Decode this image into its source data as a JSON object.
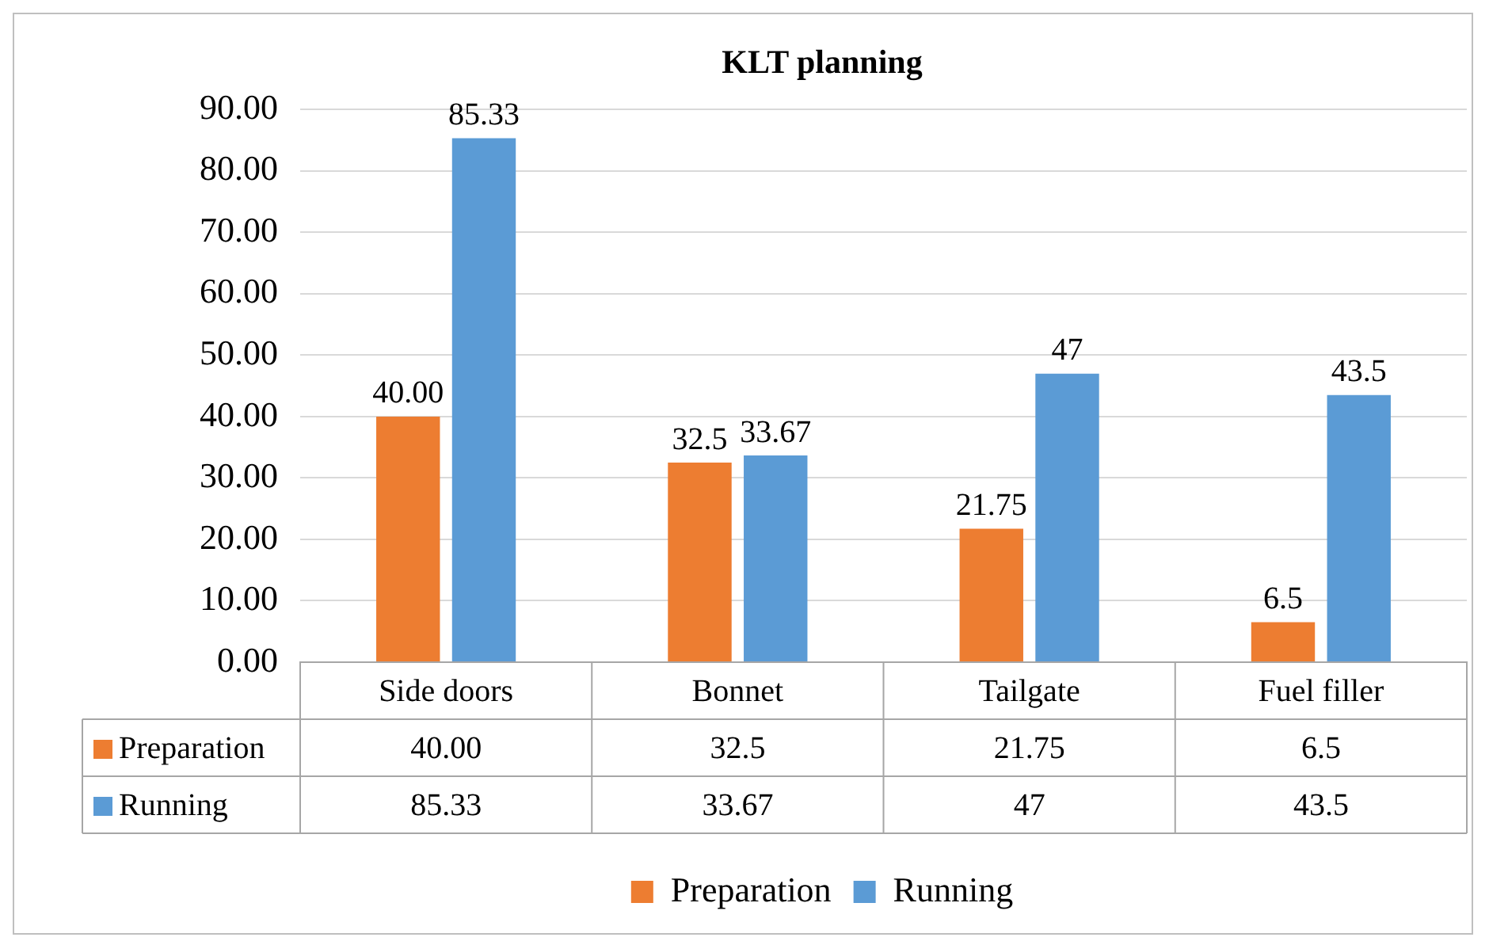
{
  "chart_data": {
    "type": "bar",
    "title": "KLT planning",
    "categories": [
      "Side doors",
      "Bonnet",
      "Tailgate",
      "Fuel filler"
    ],
    "series": [
      {
        "name": "Preparation",
        "color": "#ed7d31",
        "values": [
          40.0,
          32.5,
          21.75,
          6.5
        ],
        "value_labels": [
          "40.00",
          "32.5",
          "21.75",
          "6.5"
        ]
      },
      {
        "name": "Running",
        "color": "#5b9bd5",
        "values": [
          85.33,
          33.67,
          47,
          43.5
        ],
        "value_labels": [
          "85.33",
          "33.67",
          "47",
          "43.5"
        ]
      }
    ],
    "ylim": [
      0,
      90
    ],
    "yticks": [
      {
        "value": 0,
        "label": "0.00"
      },
      {
        "value": 10,
        "label": "10.00"
      },
      {
        "value": 20,
        "label": "20.00"
      },
      {
        "value": 30,
        "label": "30.00"
      },
      {
        "value": 40,
        "label": "40.00"
      },
      {
        "value": 50,
        "label": "50.00"
      },
      {
        "value": 60,
        "label": "60.00"
      },
      {
        "value": 70,
        "label": "70.00"
      },
      {
        "value": 80,
        "label": "80.00"
      },
      {
        "value": 90,
        "label": "90.00"
      }
    ],
    "grid": "y",
    "legend": "bottom"
  }
}
